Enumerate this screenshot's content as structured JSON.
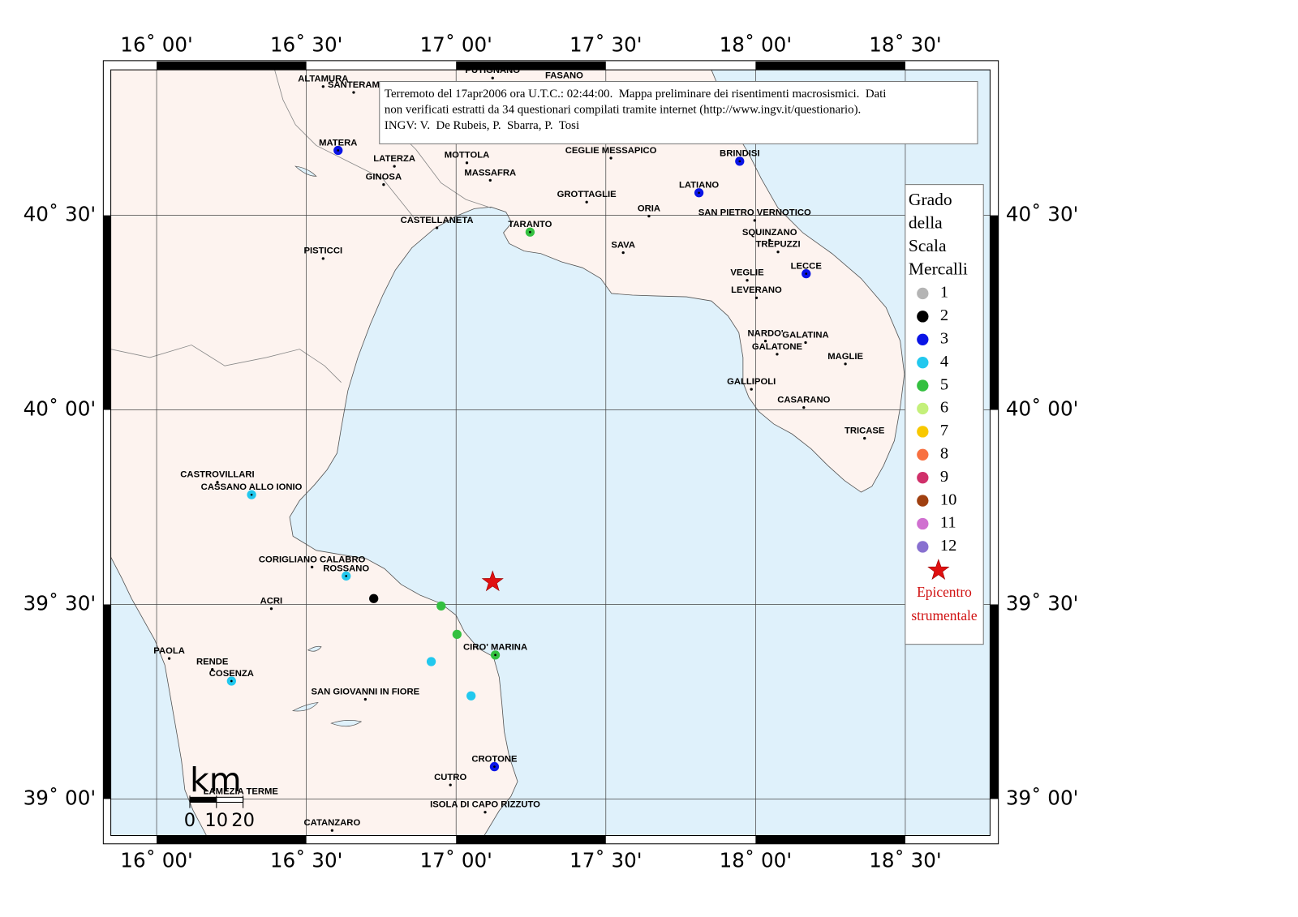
{
  "map": {
    "type": "map",
    "lonlim": [
      15.847,
      18.783
    ],
    "latlim": [
      38.906,
      40.874
    ],
    "lonticks": [
      {
        "value": 16,
        "label": "16˚ 00'"
      },
      {
        "value": 16.5,
        "label": "16˚ 30'"
      },
      {
        "value": 17,
        "label": "17˚ 00'"
      },
      {
        "value": 17.5,
        "label": "17˚ 30'"
      },
      {
        "value": 18,
        "label": "18˚ 00'"
      },
      {
        "value": 18.5,
        "label": "18˚ 30'"
      }
    ],
    "latticks": [
      {
        "value": 39,
        "label": "39˚ 00'"
      },
      {
        "value": 39.5,
        "label": "39˚ 30'"
      },
      {
        "value": 40,
        "label": "40˚ 00'"
      },
      {
        "value": 40.5,
        "label": "40˚ 30'"
      }
    ],
    "info_box": [
      "Terremoto del 17apr2006 ora U.T.C.: 02:44:00.  Mappa preliminare dei risentimenti macrosismici.  Dati",
      "non verificati estratti da 34 questionari compilati tramite internet (http://www.ingv.it/questionario).",
      "INGV: V.  De Rubeis, P.  Sbarra, P.  Tosi"
    ],
    "legend": {
      "title": [
        "Grado",
        "della",
        "Scala",
        "Mercalli"
      ],
      "items": [
        {
          "grade": 1,
          "color": "#b4b4b4"
        },
        {
          "grade": 2,
          "color": "#000000"
        },
        {
          "grade": 3,
          "color": "#0a14e6"
        },
        {
          "grade": 4,
          "color": "#22c8ee"
        },
        {
          "grade": 5,
          "color": "#34c040"
        },
        {
          "grade": 6,
          "color": "#c4f07a"
        },
        {
          "grade": 7,
          "color": "#f8c800"
        },
        {
          "grade": 8,
          "color": "#f87040"
        },
        {
          "grade": 9,
          "color": "#d0306a"
        },
        {
          "grade": 10,
          "color": "#a04010"
        },
        {
          "grade": 11,
          "color": "#d070d0"
        },
        {
          "grade": 12,
          "color": "#8870d0"
        }
      ],
      "epicenter_label": [
        "Epicentro",
        "strumentale"
      ],
      "epicenter_color": "#e01010"
    },
    "epicenter": {
      "lon": 17.122,
      "lat": 39.558
    },
    "scale_bar": {
      "unit": "km",
      "ticks": [
        0,
        10,
        20
      ]
    },
    "towns": [
      {
        "name": "ALTAMURA",
        "lon": 16.556,
        "lat": 40.831
      },
      {
        "name": "SANTERAM",
        "lon": 16.658,
        "lat": 40.816
      },
      {
        "name": "PUTIGNANO",
        "lon": 17.122,
        "lat": 40.853
      },
      {
        "name": "FASANO",
        "lon": 17.361,
        "lat": 40.84
      },
      {
        "name": "MATERA",
        "lon": 16.606,
        "lat": 40.667,
        "grade": 3
      },
      {
        "name": "LATERZA",
        "lon": 16.794,
        "lat": 40.626
      },
      {
        "name": "GINOSA",
        "lon": 16.758,
        "lat": 40.579
      },
      {
        "name": "MOTTOLA",
        "lon": 17.036,
        "lat": 40.635
      },
      {
        "name": "MASSAFRA",
        "lon": 17.114,
        "lat": 40.59
      },
      {
        "name": "CEGLIE MESSAPICO",
        "lon": 17.517,
        "lat": 40.647
      },
      {
        "name": "BRINDISI",
        "lon": 17.947,
        "lat": 40.639,
        "grade": 3
      },
      {
        "name": "LATIANO",
        "lon": 17.811,
        "lat": 40.558,
        "grade": 3
      },
      {
        "name": "GROTTAGLIE",
        "lon": 17.436,
        "lat": 40.534
      },
      {
        "name": "ORIA",
        "lon": 17.644,
        "lat": 40.498
      },
      {
        "name": "SAN PIETRO VERNOTICO",
        "lon": 17.997,
        "lat": 40.487
      },
      {
        "name": "CASTELLANETA",
        "lon": 16.936,
        "lat": 40.468
      },
      {
        "name": "TARANTO",
        "lon": 17.247,
        "lat": 40.457,
        "grade": 5
      },
      {
        "name": "SQUINZANO",
        "lon": 18.047,
        "lat": 40.436
      },
      {
        "name": "TREPUZZI",
        "lon": 18.075,
        "lat": 40.406
      },
      {
        "name": "SAVA",
        "lon": 17.558,
        "lat": 40.404
      },
      {
        "name": "PISTICCI",
        "lon": 16.556,
        "lat": 40.389
      },
      {
        "name": "VEGLIE",
        "lon": 17.972,
        "lat": 40.333
      },
      {
        "name": "LECCE",
        "lon": 18.169,
        "lat": 40.35,
        "grade": 3
      },
      {
        "name": "LEVERANO",
        "lon": 18.003,
        "lat": 40.288
      },
      {
        "name": "NARDO'",
        "lon": 18.033,
        "lat": 40.177
      },
      {
        "name": "GALATINA",
        "lon": 18.167,
        "lat": 40.173
      },
      {
        "name": "GALATONE",
        "lon": 18.072,
        "lat": 40.143
      },
      {
        "name": "MAGLIE",
        "lon": 18.3,
        "lat": 40.118
      },
      {
        "name": "GALLIPOLI",
        "lon": 17.986,
        "lat": 40.053
      },
      {
        "name": "CASARANO",
        "lon": 18.161,
        "lat": 40.006
      },
      {
        "name": "TRICASE",
        "lon": 18.364,
        "lat": 39.927
      },
      {
        "name": "CASTROVILLARI",
        "lon": 16.203,
        "lat": 39.814
      },
      {
        "name": "CASSANO ALLO IONIO",
        "lon": 16.317,
        "lat": 39.782,
        "grade": 4
      },
      {
        "name": "CORIGLIANO CALABRO",
        "lon": 16.519,
        "lat": 39.596
      },
      {
        "name": "ROSSANO",
        "lon": 16.633,
        "lat": 39.573,
        "grade": 4
      },
      {
        "name": null,
        "lon": 16.725,
        "lat": 39.515,
        "grade": 2
      },
      {
        "name": "ACRI",
        "lon": 16.383,
        "lat": 39.489
      },
      {
        "name": null,
        "lon": 16.95,
        "lat": 39.496,
        "grade": 5
      },
      {
        "name": null,
        "lon": 17.003,
        "lat": 39.423,
        "grade": 5
      },
      {
        "name": "CIRO' MARINA",
        "lon": 17.131,
        "lat": 39.37,
        "grade": 5
      },
      {
        "name": "PAOLA",
        "lon": 16.042,
        "lat": 39.361
      },
      {
        "name": "RENDE",
        "lon": 16.186,
        "lat": 39.333
      },
      {
        "name": "COSENZA",
        "lon": 16.25,
        "lat": 39.303,
        "grade": 4
      },
      {
        "name": null,
        "lon": 16.917,
        "lat": 39.353,
        "grade": 4
      },
      {
        "name": null,
        "lon": 17.05,
        "lat": 39.265,
        "grade": 4
      },
      {
        "name": "SAN GIOVANNI IN FIORE",
        "lon": 16.697,
        "lat": 39.256
      },
      {
        "name": "CROTONE",
        "lon": 17.128,
        "lat": 39.083,
        "grade": 3
      },
      {
        "name": "CUTRO",
        "lon": 16.981,
        "lat": 39.036
      },
      {
        "name": "LAMEZIA TERME",
        "lon": 16.281,
        "lat": 39.0
      },
      {
        "name": "ISOLA DI CAPO RIZZUTO",
        "lon": 17.097,
        "lat": 38.966
      },
      {
        "name": "CATANZARO",
        "lon": 16.586,
        "lat": 38.919
      }
    ]
  }
}
